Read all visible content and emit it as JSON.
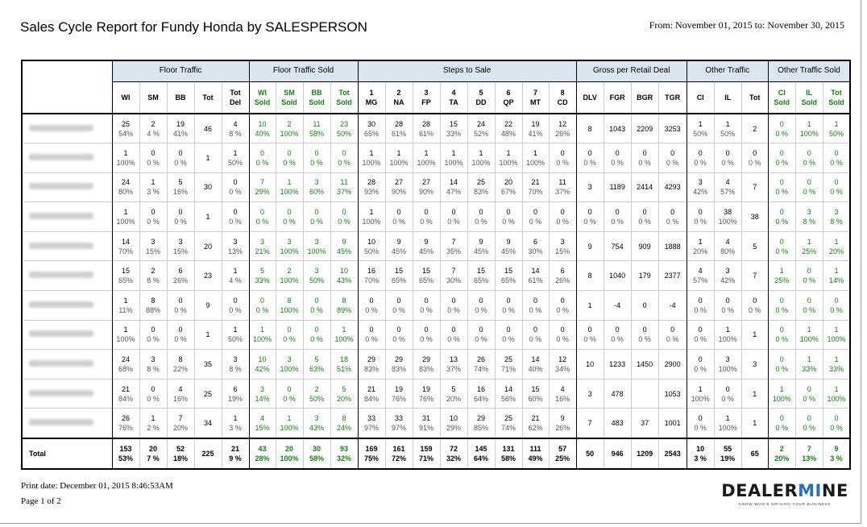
{
  "report": {
    "title": "Sales Cycle Report for Fundy Honda by SALESPERSON",
    "date_range": "From: November 01, 2015 to: November 30, 2015"
  },
  "groups": [
    "Floor Traffic",
    "Floor Traffic Sold",
    "Steps to Sale",
    "Gross per Retail Deal",
    "Other Traffic",
    "Other Traffic Sold"
  ],
  "columns": [
    {
      "label": "WI",
      "group": 0,
      "style": "black"
    },
    {
      "label": "SM",
      "group": 0,
      "style": "black"
    },
    {
      "label": "BB",
      "group": 0,
      "style": "black"
    },
    {
      "label": "Tot",
      "group": 0,
      "style": "black"
    },
    {
      "label": "Tot Del",
      "group": 0,
      "style": "black"
    },
    {
      "label": "WI Sold",
      "group": 1,
      "style": "green"
    },
    {
      "label": "SM Sold",
      "group": 1,
      "style": "green"
    },
    {
      "label": "BB Sold",
      "group": 1,
      "style": "green"
    },
    {
      "label": "Tot Sold",
      "group": 1,
      "style": "green"
    },
    {
      "label": "1 MG",
      "group": 2,
      "style": "black"
    },
    {
      "label": "2 NA",
      "group": 2,
      "style": "black"
    },
    {
      "label": "3 FP",
      "group": 2,
      "style": "black"
    },
    {
      "label": "4 TA",
      "group": 2,
      "style": "black"
    },
    {
      "label": "5 DD",
      "group": 2,
      "style": "black"
    },
    {
      "label": "6 QP",
      "group": 2,
      "style": "black"
    },
    {
      "label": "7 MT",
      "group": 2,
      "style": "black"
    },
    {
      "label": "8 CD",
      "group": 2,
      "style": "black"
    },
    {
      "label": "DLV",
      "group": 3,
      "style": "black"
    },
    {
      "label": "FGR",
      "group": 3,
      "style": "black"
    },
    {
      "label": "BGR",
      "group": 3,
      "style": "black"
    },
    {
      "label": "TGR",
      "group": 3,
      "style": "black"
    },
    {
      "label": "CI",
      "group": 4,
      "style": "black"
    },
    {
      "label": "IL",
      "group": 4,
      "style": "black"
    },
    {
      "label": "Tot",
      "group": 4,
      "style": "black"
    },
    {
      "label": "CI Sold",
      "group": 5,
      "style": "green"
    },
    {
      "label": "IL Sold",
      "group": 5,
      "style": "green"
    },
    {
      "label": "Tot Sold",
      "group": 5,
      "style": "green"
    }
  ],
  "rows": [
    {
      "cells": [
        [
          "25",
          "54%"
        ],
        [
          "2",
          "4 %"
        ],
        [
          "19",
          "41%"
        ],
        [
          "46",
          ""
        ],
        [
          "4",
          "8 %"
        ],
        [
          "10",
          "40%"
        ],
        [
          "2",
          "100%"
        ],
        [
          "11",
          "58%"
        ],
        [
          "23",
          "50%"
        ],
        [
          "30",
          "65%"
        ],
        [
          "28",
          "61%"
        ],
        [
          "28",
          "61%"
        ],
        [
          "15",
          "33%"
        ],
        [
          "24",
          "52%"
        ],
        [
          "22",
          "48%"
        ],
        [
          "19",
          "41%"
        ],
        [
          "12",
          "26%"
        ],
        [
          "8",
          ""
        ],
        [
          "1043",
          ""
        ],
        [
          "2209",
          ""
        ],
        [
          "3253",
          ""
        ],
        [
          "1",
          "50%"
        ],
        [
          "1",
          "50%"
        ],
        [
          "2",
          ""
        ],
        [
          "0",
          "0 %"
        ],
        [
          "1",
          "100%"
        ],
        [
          "1",
          "50%"
        ]
      ]
    },
    {
      "cells": [
        [
          "1",
          "100%"
        ],
        [
          "0",
          "0 %"
        ],
        [
          "0",
          "0 %"
        ],
        [
          "1",
          ""
        ],
        [
          "1",
          "50%"
        ],
        [
          "0",
          "0 %"
        ],
        [
          "0",
          "0 %"
        ],
        [
          "0",
          "0 %"
        ],
        [
          "0",
          "0 %"
        ],
        [
          "1",
          "100%"
        ],
        [
          "1",
          "100%"
        ],
        [
          "1",
          "100%"
        ],
        [
          "1",
          "100%"
        ],
        [
          "1",
          "100%"
        ],
        [
          "1",
          "100%"
        ],
        [
          "1",
          "100%"
        ],
        [
          "0",
          "0 %"
        ],
        [
          "0",
          "0 %"
        ],
        [
          "0",
          "0 %"
        ],
        [
          "0",
          "0 %"
        ],
        [
          "0",
          "0 %"
        ],
        [
          "0",
          "0 %"
        ],
        [
          "0",
          "0 %"
        ],
        [
          "0",
          "0 %"
        ],
        [
          "0",
          "0 %"
        ],
        [
          "0",
          "0 %"
        ],
        [
          "0",
          "0 %"
        ]
      ]
    },
    {
      "cells": [
        [
          "24",
          "80%"
        ],
        [
          "1",
          "3 %"
        ],
        [
          "5",
          "16%"
        ],
        [
          "30",
          ""
        ],
        [
          "0",
          "0 %"
        ],
        [
          "7",
          "29%"
        ],
        [
          "1",
          "100%"
        ],
        [
          "3",
          "60%"
        ],
        [
          "11",
          "37%"
        ],
        [
          "28",
          "93%"
        ],
        [
          "27",
          "90%"
        ],
        [
          "27",
          "90%"
        ],
        [
          "14",
          "47%"
        ],
        [
          "25",
          "83%"
        ],
        [
          "20",
          "67%"
        ],
        [
          "21",
          "70%"
        ],
        [
          "11",
          "37%"
        ],
        [
          "3",
          ""
        ],
        [
          "1189",
          ""
        ],
        [
          "2414",
          ""
        ],
        [
          "4293",
          ""
        ],
        [
          "3",
          "42%"
        ],
        [
          "4",
          "57%"
        ],
        [
          "7",
          ""
        ],
        [
          "0",
          "0 %"
        ],
        [
          "0",
          "0 %"
        ],
        [
          "0",
          "0 %"
        ]
      ]
    },
    {
      "cells": [
        [
          "1",
          "100%"
        ],
        [
          "0",
          "0 %"
        ],
        [
          "0",
          "0 %"
        ],
        [
          "1",
          ""
        ],
        [
          "0",
          "0 %"
        ],
        [
          "0",
          "0 %"
        ],
        [
          "0",
          "0 %"
        ],
        [
          "0",
          "0 %"
        ],
        [
          "0",
          "0 %"
        ],
        [
          "1",
          "100%"
        ],
        [
          "0",
          "0 %"
        ],
        [
          "0",
          "0 %"
        ],
        [
          "0",
          "0 %"
        ],
        [
          "0",
          "0 %"
        ],
        [
          "0",
          "0 %"
        ],
        [
          "0",
          "0 %"
        ],
        [
          "0",
          "0 %"
        ],
        [
          "0",
          "0 %"
        ],
        [
          "0",
          "0 %"
        ],
        [
          "0",
          "0 %"
        ],
        [
          "0",
          "0 %"
        ],
        [
          "0",
          "0 %"
        ],
        [
          "38",
          "100%"
        ],
        [
          "38",
          ""
        ],
        [
          "0",
          "0 %"
        ],
        [
          "3",
          "8 %"
        ],
        [
          "3",
          "8 %"
        ]
      ]
    },
    {
      "cells": [
        [
          "14",
          "70%"
        ],
        [
          "3",
          "15%"
        ],
        [
          "3",
          "15%"
        ],
        [
          "20",
          ""
        ],
        [
          "3",
          "13%"
        ],
        [
          "3",
          "21%"
        ],
        [
          "3",
          "100%"
        ],
        [
          "3",
          "100%"
        ],
        [
          "9",
          "45%"
        ],
        [
          "10",
          "50%"
        ],
        [
          "9",
          "45%"
        ],
        [
          "9",
          "45%"
        ],
        [
          "7",
          "35%"
        ],
        [
          "9",
          "45%"
        ],
        [
          "9",
          "45%"
        ],
        [
          "6",
          "30%"
        ],
        [
          "3",
          "15%"
        ],
        [
          "9",
          ""
        ],
        [
          "754",
          ""
        ],
        [
          "909",
          ""
        ],
        [
          "1888",
          ""
        ],
        [
          "1",
          "20%"
        ],
        [
          "4",
          "80%"
        ],
        [
          "5",
          ""
        ],
        [
          "0",
          "0 %"
        ],
        [
          "1",
          "25%"
        ],
        [
          "1",
          "20%"
        ]
      ]
    },
    {
      "cells": [
        [
          "15",
          "65%"
        ],
        [
          "2",
          "8 %"
        ],
        [
          "6",
          "26%"
        ],
        [
          "23",
          ""
        ],
        [
          "1",
          "4 %"
        ],
        [
          "5",
          "33%"
        ],
        [
          "2",
          "100%"
        ],
        [
          "3",
          "50%"
        ],
        [
          "10",
          "43%"
        ],
        [
          "16",
          "70%"
        ],
        [
          "15",
          "65%"
        ],
        [
          "15",
          "65%"
        ],
        [
          "7",
          "30%"
        ],
        [
          "15",
          "65%"
        ],
        [
          "15",
          "65%"
        ],
        [
          "14",
          "61%"
        ],
        [
          "6",
          "26%"
        ],
        [
          "8",
          ""
        ],
        [
          "1040",
          ""
        ],
        [
          "179",
          ""
        ],
        [
          "2377",
          ""
        ],
        [
          "4",
          "57%"
        ],
        [
          "3",
          "42%"
        ],
        [
          "7",
          ""
        ],
        [
          "1",
          "25%"
        ],
        [
          "0",
          "0 %"
        ],
        [
          "1",
          "14%"
        ]
      ]
    },
    {
      "cells": [
        [
          "1",
          "11%"
        ],
        [
          "8",
          "88%"
        ],
        [
          "0",
          "0 %"
        ],
        [
          "9",
          ""
        ],
        [
          "0",
          "0 %"
        ],
        [
          "0",
          "0 %"
        ],
        [
          "8",
          "100%"
        ],
        [
          "0",
          "0 %"
        ],
        [
          "8",
          "89%"
        ],
        [
          "0",
          "0 %"
        ],
        [
          "0",
          "0 %"
        ],
        [
          "0",
          "0 %"
        ],
        [
          "0",
          "0 %"
        ],
        [
          "0",
          "0 %"
        ],
        [
          "0",
          "0 %"
        ],
        [
          "0",
          "0 %"
        ],
        [
          "0",
          "0 %"
        ],
        [
          "1",
          ""
        ],
        [
          "-4",
          ""
        ],
        [
          "0",
          ""
        ],
        [
          "-4",
          ""
        ],
        [
          "0",
          "0 %"
        ],
        [
          "0",
          "0 %"
        ],
        [
          "0",
          "0 %"
        ],
        [
          "0",
          "0 %"
        ],
        [
          "0",
          "0 %"
        ],
        [
          "0",
          "0 %"
        ]
      ]
    },
    {
      "cells": [
        [
          "1",
          "100%"
        ],
        [
          "0",
          "0 %"
        ],
        [
          "0",
          "0 %"
        ],
        [
          "1",
          ""
        ],
        [
          "1",
          "50%"
        ],
        [
          "1",
          "100%"
        ],
        [
          "0",
          "0 %"
        ],
        [
          "0",
          "0 %"
        ],
        [
          "1",
          "100%"
        ],
        [
          "0",
          "0 %"
        ],
        [
          "0",
          "0 %"
        ],
        [
          "0",
          "0 %"
        ],
        [
          "0",
          "0 %"
        ],
        [
          "0",
          "0 %"
        ],
        [
          "0",
          "0 %"
        ],
        [
          "0",
          "0 %"
        ],
        [
          "0",
          "0 %"
        ],
        [
          "0",
          "0 %"
        ],
        [
          "0",
          "0 %"
        ],
        [
          "0",
          "0 %"
        ],
        [
          "0",
          "0 %"
        ],
        [
          "0",
          "0 %"
        ],
        [
          "1",
          "100%"
        ],
        [
          "1",
          ""
        ],
        [
          "0",
          "0 %"
        ],
        [
          "1",
          "100%"
        ],
        [
          "1",
          "100%"
        ]
      ]
    },
    {
      "cells": [
        [
          "24",
          "68%"
        ],
        [
          "3",
          "8 %"
        ],
        [
          "8",
          "22%"
        ],
        [
          "35",
          ""
        ],
        [
          "3",
          "8 %"
        ],
        [
          "10",
          "42%"
        ],
        [
          "3",
          "100%"
        ],
        [
          "5",
          "63%"
        ],
        [
          "18",
          "51%"
        ],
        [
          "29",
          "83%"
        ],
        [
          "29",
          "83%"
        ],
        [
          "29",
          "83%"
        ],
        [
          "13",
          "37%"
        ],
        [
          "26",
          "74%"
        ],
        [
          "25",
          "71%"
        ],
        [
          "14",
          "40%"
        ],
        [
          "12",
          "34%"
        ],
        [
          "10",
          ""
        ],
        [
          "1233",
          ""
        ],
        [
          "1450",
          ""
        ],
        [
          "2900",
          ""
        ],
        [
          "0",
          "0 %"
        ],
        [
          "3",
          "100%"
        ],
        [
          "3",
          ""
        ],
        [
          "0",
          "0 %"
        ],
        [
          "1",
          "33%"
        ],
        [
          "1",
          "33%"
        ]
      ]
    },
    {
      "cells": [
        [
          "21",
          "84%"
        ],
        [
          "0",
          "0 %"
        ],
        [
          "4",
          "16%"
        ],
        [
          "25",
          ""
        ],
        [
          "6",
          "19%"
        ],
        [
          "3",
          "14%"
        ],
        [
          "0",
          "0 %"
        ],
        [
          "2",
          "50%"
        ],
        [
          "5",
          "20%"
        ],
        [
          "21",
          "84%"
        ],
        [
          "19",
          "76%"
        ],
        [
          "19",
          "76%"
        ],
        [
          "5",
          "20%"
        ],
        [
          "16",
          "64%"
        ],
        [
          "14",
          "56%"
        ],
        [
          "15",
          "60%"
        ],
        [
          "4",
          "16%"
        ],
        [
          "3",
          ""
        ],
        [
          "478",
          ""
        ],
        [
          "",
          ""
        ],
        [
          "1053",
          ""
        ],
        [
          "1",
          "100%"
        ],
        [
          "0",
          "0 %"
        ],
        [
          "1",
          ""
        ],
        [
          "1",
          "100%"
        ],
        [
          "0",
          "0 %"
        ],
        [
          "1",
          "100%"
        ]
      ]
    },
    {
      "cells": [
        [
          "26",
          "76%"
        ],
        [
          "1",
          "2 %"
        ],
        [
          "7",
          "20%"
        ],
        [
          "34",
          ""
        ],
        [
          "1",
          "3 %"
        ],
        [
          "4",
          "15%"
        ],
        [
          "1",
          "100%"
        ],
        [
          "3",
          "43%"
        ],
        [
          "8",
          "24%"
        ],
        [
          "33",
          "97%"
        ],
        [
          "33",
          "97%"
        ],
        [
          "31",
          "91%"
        ],
        [
          "10",
          "29%"
        ],
        [
          "29",
          "85%"
        ],
        [
          "25",
          "74%"
        ],
        [
          "21",
          "62%"
        ],
        [
          "9",
          "26%"
        ],
        [
          "7",
          ""
        ],
        [
          "483",
          ""
        ],
        [
          "37",
          ""
        ],
        [
          "1001",
          ""
        ],
        [
          "0",
          "0 %"
        ],
        [
          "1",
          "100%"
        ],
        [
          "1",
          ""
        ],
        [
          "0",
          "0 %"
        ],
        [
          "0",
          "0 %"
        ],
        [
          "0",
          "0 %"
        ]
      ]
    }
  ],
  "total": {
    "label": "Total",
    "cells": [
      [
        "153",
        "53%"
      ],
      [
        "20",
        "7 %"
      ],
      [
        "52",
        "18%"
      ],
      [
        "225",
        ""
      ],
      [
        "21",
        "9 %"
      ],
      [
        "43",
        "28%"
      ],
      [
        "20",
        "100%"
      ],
      [
        "30",
        "58%"
      ],
      [
        "93",
        "32%"
      ],
      [
        "169",
        "75%"
      ],
      [
        "161",
        "72%"
      ],
      [
        "159",
        "71%"
      ],
      [
        "72",
        "32%"
      ],
      [
        "145",
        "64%"
      ],
      [
        "131",
        "58%"
      ],
      [
        "111",
        "49%"
      ],
      [
        "57",
        "25%"
      ],
      [
        "50",
        ""
      ],
      [
        "946",
        ""
      ],
      [
        "1209",
        ""
      ],
      [
        "2543",
        ""
      ],
      [
        "10",
        "3 %"
      ],
      [
        "55",
        "19%"
      ],
      [
        "65",
        ""
      ],
      [
        "2",
        "20%"
      ],
      [
        "7",
        "13%"
      ],
      [
        "9",
        "3 %"
      ]
    ]
  },
  "footer": {
    "print_date": "Print date:  December 01, 2015  8:46:53AM",
    "page": "Page 1 of 2"
  },
  "logo": {
    "text_a": "DEALER",
    "text_b": "M",
    "text_c": "NE",
    "tagline": "KNOW WHO'S DRIVING YOUR BUSINESS"
  }
}
